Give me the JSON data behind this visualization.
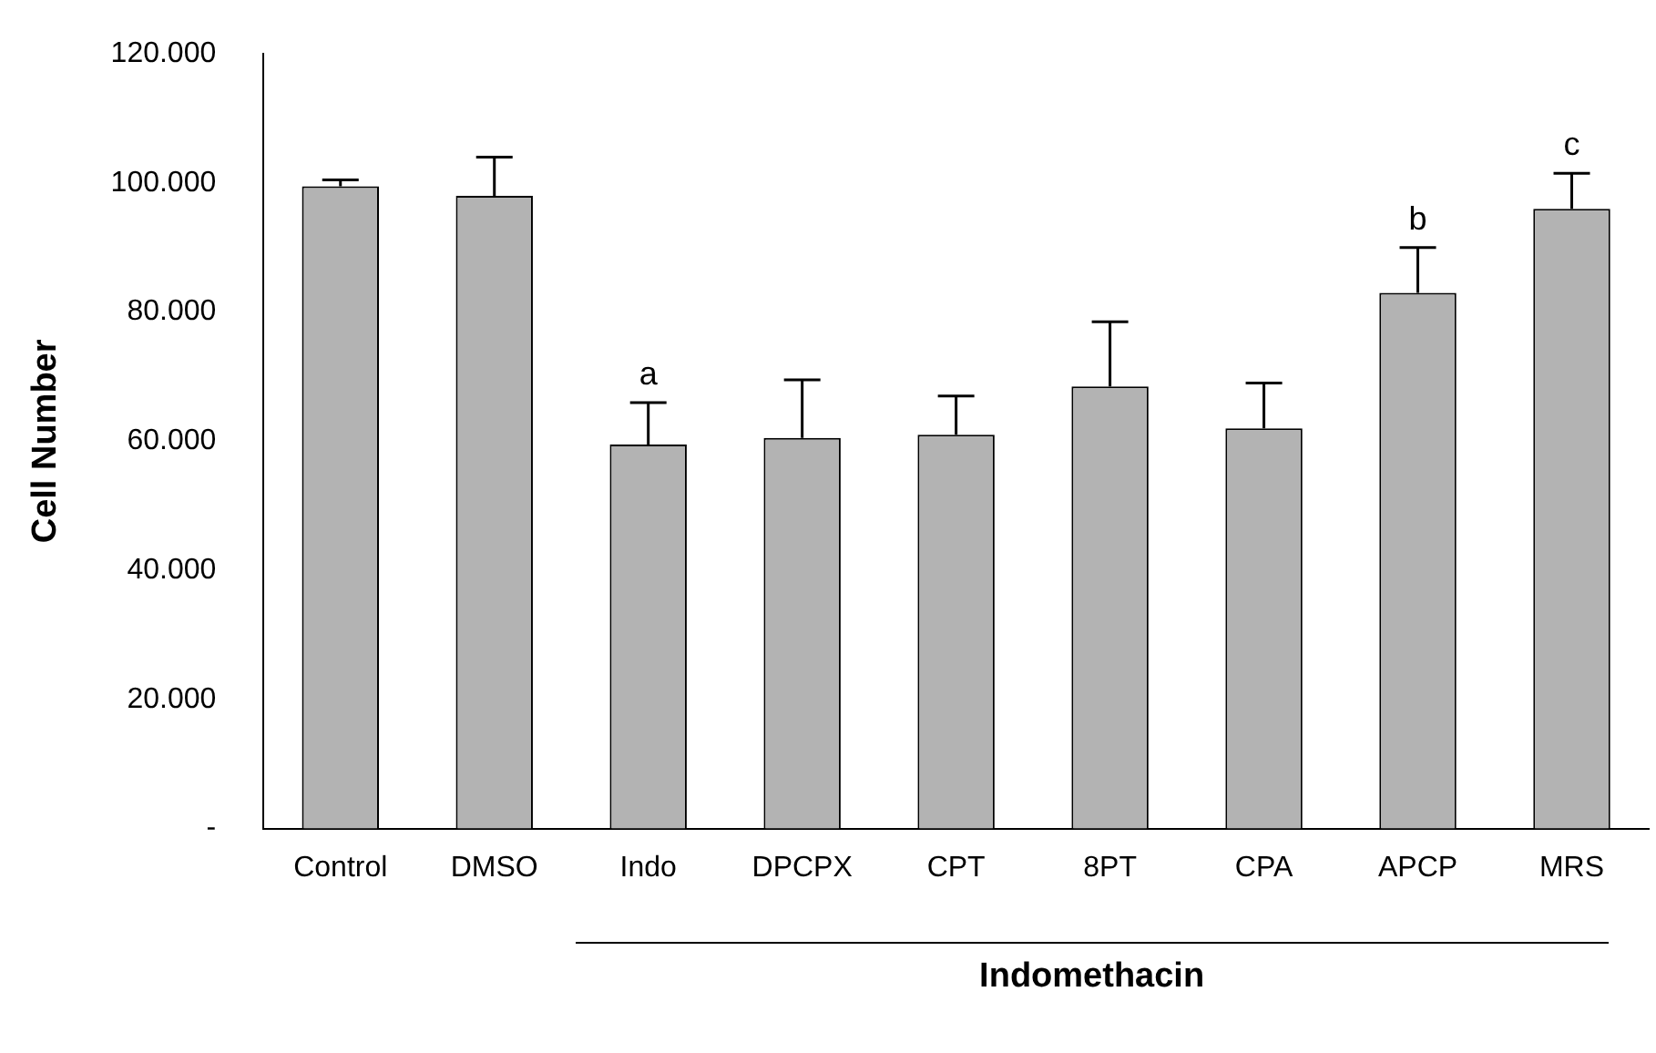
{
  "chart_data": {
    "type": "bar",
    "ylabel": "Cell Number",
    "categories": [
      "Control",
      "DMSO",
      "Indo",
      "DPCPX",
      "CPT",
      "8PT",
      "CPA",
      "APCP",
      "MRS"
    ],
    "values": [
      99.5,
      98,
      59.5,
      60.5,
      61,
      68.5,
      62,
      83,
      96
    ],
    "errors": [
      1,
      6,
      6.5,
      9,
      6,
      10,
      7,
      7,
      5.5
    ],
    "color": "#b3b3b3",
    "ylim": [
      0,
      120
    ],
    "yticks": [
      {
        "value": 0,
        "label": "-"
      },
      {
        "value": 20,
        "label": "20.000"
      },
      {
        "value": 40,
        "label": "40.000"
      },
      {
        "value": 60,
        "label": "60.000"
      },
      {
        "value": 80,
        "label": "80.000"
      },
      {
        "value": 100,
        "label": "100.000"
      },
      {
        "value": 120,
        "label": "120.000"
      }
    ],
    "grid": false,
    "legend": false,
    "annotations": [
      {
        "text": "a",
        "x": "Indo",
        "y": 66
      },
      {
        "text": "b",
        "x": "APCP",
        "y": 90
      },
      {
        "text": "c",
        "x": "MRS",
        "y": 101.5
      },
      "Indomethacin"
    ]
  }
}
